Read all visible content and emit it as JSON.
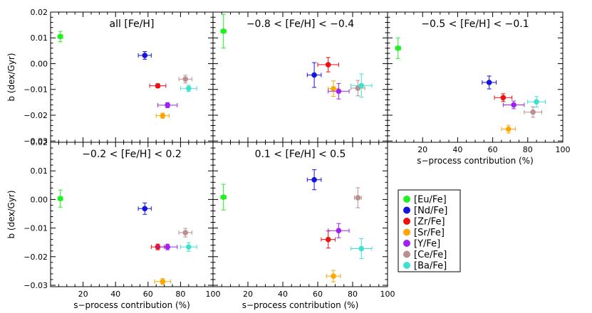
{
  "chart_data": {
    "type": "scatter",
    "xlabel": "s−process contribution (%)",
    "ylabel": "b (dex/Gyr)",
    "xlim": [
      0,
      100
    ],
    "ylim": [
      -0.03,
      0.02
    ],
    "xticks": [
      20,
      40,
      60,
      80,
      100
    ],
    "yticks": [
      0.02,
      0.01,
      0.0,
      -0.01,
      -0.02,
      -0.03
    ],
    "ytick_labels": [
      "0.02",
      "0.01",
      "0.00",
      "−0.01",
      "−0.02",
      "−0.03"
    ],
    "legend_position": "lower-right",
    "legend": [
      {
        "key": "eu",
        "name": "[Eu/Fe]",
        "color": "#22ee22"
      },
      {
        "key": "nd",
        "name": "[Nd/Fe]",
        "color": "#1515dd"
      },
      {
        "key": "zr",
        "name": "[Zr/Fe]",
        "color": "#ee1111"
      },
      {
        "key": "sr",
        "name": "[Sr/Fe]",
        "color": "#ffa500"
      },
      {
        "key": "y",
        "name": "[Y/Fe]",
        "color": "#a020f0"
      },
      {
        "key": "ce",
        "name": "[Ce/Fe]",
        "color": "#bc8f8f"
      },
      {
        "key": "ba",
        "name": "[Ba/Fe]",
        "color": "#40e0d0"
      }
    ],
    "panels": [
      {
        "title": "all [Fe/H]",
        "points": [
          {
            "el": "eu",
            "x": 6,
            "y": 0.0105,
            "xerr": 1.5,
            "yerr": 0.002
          },
          {
            "el": "nd",
            "x": 58,
            "y": 0.0032,
            "xerr": 4,
            "yerr": 0.0015
          },
          {
            "el": "zr",
            "x": 66,
            "y": -0.0086,
            "xerr": 5,
            "yerr": 0.0008
          },
          {
            "el": "sr",
            "x": 69,
            "y": -0.0202,
            "xerr": 4,
            "yerr": 0.001
          },
          {
            "el": "y",
            "x": 72,
            "y": -0.0161,
            "xerr": 6,
            "yerr": 0.001
          },
          {
            "el": "ce",
            "x": 83,
            "y": -0.006,
            "xerr": 4,
            "yerr": 0.0015
          },
          {
            "el": "ba",
            "x": 85,
            "y": -0.0096,
            "xerr": 5,
            "yerr": 0.0012
          }
        ]
      },
      {
        "title": "−0.8 < [Fe/H] < −0.4",
        "points": [
          {
            "el": "eu",
            "x": 6,
            "y": 0.0126,
            "xerr": 1.5,
            "yerr": 0.0065
          },
          {
            "el": "nd",
            "x": 58,
            "y": -0.0044,
            "xerr": 4,
            "yerr": 0.0048
          },
          {
            "el": "zr",
            "x": 66,
            "y": -0.0004,
            "xerr": 6,
            "yerr": 0.0028
          },
          {
            "el": "sr",
            "x": 69,
            "y": -0.0097,
            "xerr": 3,
            "yerr": 0.003
          },
          {
            "el": "y",
            "x": 72,
            "y": -0.0107,
            "xerr": 6,
            "yerr": 0.003
          },
          {
            "el": "ce",
            "x": 83,
            "y": -0.0095,
            "xerr": 4,
            "yerr": 0.003
          },
          {
            "el": "ba",
            "x": 85,
            "y": -0.0085,
            "xerr": 6,
            "yerr": 0.0045
          }
        ]
      },
      {
        "title": "−0.5 < [Fe/H] < −0.1",
        "points": [
          {
            "el": "eu",
            "x": 6,
            "y": 0.006,
            "xerr": 1.5,
            "yerr": 0.004
          },
          {
            "el": "nd",
            "x": 58,
            "y": -0.0073,
            "xerr": 4,
            "yerr": 0.0025
          },
          {
            "el": "zr",
            "x": 66,
            "y": -0.0132,
            "xerr": 5,
            "yerr": 0.0015
          },
          {
            "el": "sr",
            "x": 69,
            "y": -0.0254,
            "xerr": 4,
            "yerr": 0.0015
          },
          {
            "el": "y",
            "x": 72,
            "y": -0.016,
            "xerr": 6,
            "yerr": 0.0015
          },
          {
            "el": "ce",
            "x": 83,
            "y": -0.0188,
            "xerr": 5,
            "yerr": 0.002
          },
          {
            "el": "ba",
            "x": 85,
            "y": -0.0148,
            "xerr": 5,
            "yerr": 0.002
          }
        ]
      },
      {
        "title": "−0.2 < [Fe/H] < 0.2",
        "points": [
          {
            "el": "eu",
            "x": 6,
            "y": 0.0003,
            "xerr": 1.5,
            "yerr": 0.003
          },
          {
            "el": "nd",
            "x": 58,
            "y": -0.0032,
            "xerr": 4,
            "yerr": 0.002
          },
          {
            "el": "zr",
            "x": 66,
            "y": -0.0166,
            "xerr": 4,
            "yerr": 0.001
          },
          {
            "el": "sr",
            "x": 69,
            "y": -0.0287,
            "xerr": 5,
            "yerr": 0.001
          },
          {
            "el": "y",
            "x": 72,
            "y": -0.0166,
            "xerr": 6,
            "yerr": 0.001
          },
          {
            "el": "ce",
            "x": 83,
            "y": -0.0116,
            "xerr": 4,
            "yerr": 0.0015
          },
          {
            "el": "ba",
            "x": 85,
            "y": -0.0166,
            "xerr": 5,
            "yerr": 0.0015
          }
        ]
      },
      {
        "title": "0.1 < [Fe/H] < 0.5",
        "points": [
          {
            "el": "eu",
            "x": 6,
            "y": 0.0008,
            "xerr": 1.5,
            "yerr": 0.0045
          },
          {
            "el": "nd",
            "x": 58,
            "y": 0.0069,
            "xerr": 4,
            "yerr": 0.0035
          },
          {
            "el": "zr",
            "x": 66,
            "y": -0.014,
            "xerr": 4,
            "yerr": 0.003
          },
          {
            "el": "sr",
            "x": 69,
            "y": -0.0268,
            "xerr": 4,
            "yerr": 0.002
          },
          {
            "el": "y",
            "x": 72,
            "y": -0.0109,
            "xerr": 6,
            "yerr": 0.0025
          },
          {
            "el": "ce",
            "x": 83,
            "y": 0.0006,
            "xerr": 2,
            "yerr": 0.0035
          },
          {
            "el": "ba",
            "x": 85,
            "y": -0.0172,
            "xerr": 6,
            "yerr": 0.0035
          }
        ]
      }
    ]
  }
}
